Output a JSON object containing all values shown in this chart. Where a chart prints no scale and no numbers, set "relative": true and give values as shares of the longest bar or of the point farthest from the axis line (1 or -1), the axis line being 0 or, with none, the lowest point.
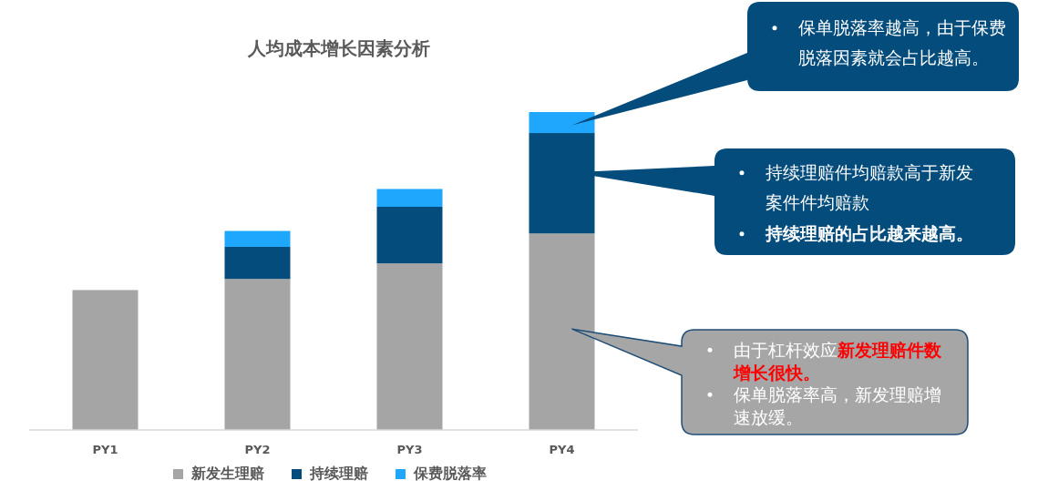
{
  "chart_data": {
    "type": "bar",
    "stacked": true,
    "relative": true,
    "title": "人均成本增长因素分析",
    "categories": [
      "PY1",
      "PY2",
      "PY3",
      "PY4"
    ],
    "series": [
      {
        "name": "新发生理赔",
        "color": "#a5a5a5",
        "values": [
          0.44,
          0.475,
          0.524,
          0.618
        ]
      },
      {
        "name": "持续理赔",
        "color": "#044c7c",
        "values": [
          null,
          0.101,
          0.178,
          0.316
        ]
      },
      {
        "name": "保费脱落率",
        "color": "#1ea7fd",
        "values": [
          null,
          0.05,
          0.056,
          0.066
        ]
      }
    ],
    "legend": "bottom",
    "annotations": [
      "保单脱落率越高，由于保费脱落因素就会占比越高。",
      "持续理赔件均赔款高于新发案件件均赔款",
      "**持续理赔的占比越来越高。**",
      "由于杠杆效应**新发理赔件数增长很快。**",
      "保单脱落率高，新发理赔增速放缓。"
    ]
  }
}
